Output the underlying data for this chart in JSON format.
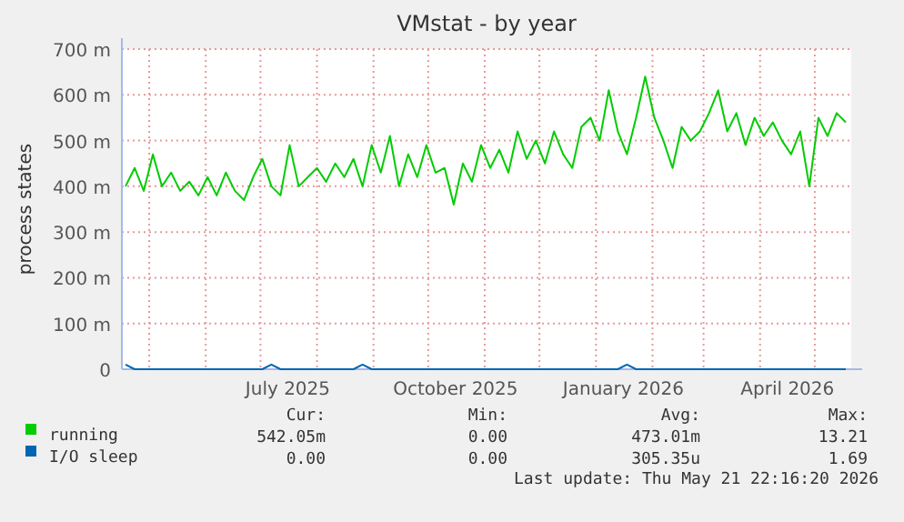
{
  "chart_data": {
    "type": "line",
    "title": "VMstat - by year",
    "ylabel": "process states",
    "x": [
      "2025-04-18",
      "2025-04-23",
      "2025-04-28",
      "2025-05-03",
      "2025-05-08",
      "2025-05-13",
      "2025-05-18",
      "2025-05-23",
      "2025-05-28",
      "2025-06-02",
      "2025-06-07",
      "2025-06-12",
      "2025-06-17",
      "2025-06-22",
      "2025-06-27",
      "2025-07-02",
      "2025-07-07",
      "2025-07-12",
      "2025-07-17",
      "2025-07-22",
      "2025-07-27",
      "2025-08-01",
      "2025-08-06",
      "2025-08-11",
      "2025-08-16",
      "2025-08-21",
      "2025-08-26",
      "2025-08-31",
      "2025-09-05",
      "2025-09-10",
      "2025-09-15",
      "2025-09-20",
      "2025-09-25",
      "2025-09-30",
      "2025-10-05",
      "2025-10-10",
      "2025-10-15",
      "2025-10-20",
      "2025-10-25",
      "2025-10-30",
      "2025-11-04",
      "2025-11-09",
      "2025-11-14",
      "2025-11-19",
      "2025-11-24",
      "2025-11-29",
      "2025-12-04",
      "2025-12-09",
      "2025-12-14",
      "2025-12-19",
      "2025-12-24",
      "2025-12-29",
      "2026-01-03",
      "2026-01-08",
      "2026-01-13",
      "2026-01-18",
      "2026-01-23",
      "2026-01-28",
      "2026-02-02",
      "2026-02-07",
      "2026-02-12",
      "2026-02-17",
      "2026-02-22",
      "2026-02-27",
      "2026-03-04",
      "2026-03-09",
      "2026-03-14",
      "2026-03-19",
      "2026-03-24",
      "2026-03-29",
      "2026-04-03",
      "2026-04-08",
      "2026-04-13",
      "2026-04-18",
      "2026-04-23",
      "2026-04-28",
      "2026-05-03",
      "2026-05-08",
      "2026-05-13",
      "2026-05-18"
    ],
    "series": [
      {
        "name": "running",
        "color": "#00cc00",
        "values": [
          400,
          440,
          390,
          470,
          400,
          430,
          390,
          410,
          380,
          420,
          380,
          430,
          390,
          370,
          420,
          460,
          400,
          380,
          490,
          400,
          420,
          440,
          410,
          450,
          420,
          460,
          400,
          490,
          430,
          510,
          400,
          470,
          420,
          490,
          430,
          440,
          360,
          450,
          410,
          490,
          440,
          480,
          430,
          520,
          460,
          500,
          450,
          520,
          470,
          440,
          530,
          550,
          500,
          610,
          520,
          470,
          550,
          640,
          550,
          500,
          440,
          530,
          500,
          520,
          560,
          610,
          520,
          560,
          490,
          550,
          510,
          540,
          500,
          470,
          520,
          400,
          550,
          510,
          560,
          540
        ]
      },
      {
        "name": "I/O sleep",
        "color": "#0066b3",
        "values": [
          10,
          0,
          0,
          0,
          0,
          0,
          0,
          0,
          0,
          0,
          0,
          0,
          0,
          0,
          0,
          0,
          10,
          0,
          0,
          0,
          0,
          0,
          0,
          0,
          0,
          0,
          10,
          0,
          0,
          0,
          0,
          0,
          0,
          0,
          0,
          0,
          0,
          0,
          0,
          0,
          0,
          0,
          0,
          0,
          0,
          0,
          0,
          0,
          0,
          0,
          0,
          0,
          0,
          0,
          0,
          10,
          0,
          0,
          0,
          0,
          0,
          0,
          0,
          0,
          0,
          0,
          0,
          0,
          0,
          0,
          0,
          0,
          0,
          0,
          0,
          0,
          0,
          0,
          0,
          0
        ]
      }
    ],
    "xlim": [
      "2025-04-16",
      "2026-05-21"
    ],
    "xticks": [
      {
        "value": "2025-05-01",
        "label": null
      },
      {
        "value": "2025-06-01",
        "label": null
      },
      {
        "value": "2025-07-01",
        "label": null
      },
      {
        "value": "2025-07-16",
        "label": "July 2025"
      },
      {
        "value": "2025-08-01",
        "label": null
      },
      {
        "value": "2025-09-01",
        "label": null
      },
      {
        "value": "2025-10-01",
        "label": null
      },
      {
        "value": "2025-10-16",
        "label": "October 2025"
      },
      {
        "value": "2025-11-01",
        "label": null
      },
      {
        "value": "2025-12-01",
        "label": null
      },
      {
        "value": "2026-01-01",
        "label": null
      },
      {
        "value": "2026-01-16",
        "label": "January 2026"
      },
      {
        "value": "2026-02-01",
        "label": null
      },
      {
        "value": "2026-03-01",
        "label": null
      },
      {
        "value": "2026-04-01",
        "label": null
      },
      {
        "value": "2026-04-16",
        "label": "April 2026"
      },
      {
        "value": "2026-05-01",
        "label": null
      }
    ],
    "ylim": [
      0,
      700
    ],
    "yticks": [
      {
        "value": 0,
        "label": "0"
      },
      {
        "value": 100,
        "label": "100 m"
      },
      {
        "value": 200,
        "label": "200 m"
      },
      {
        "value": 300,
        "label": "300 m"
      },
      {
        "value": 400,
        "label": "400 m"
      },
      {
        "value": 500,
        "label": "500 m"
      },
      {
        "value": 600,
        "label": "600 m"
      },
      {
        "value": 700,
        "label": "700 m"
      }
    ],
    "grid": true,
    "legend": "bottom",
    "annotations": [
      "Cur:",
      "Min:",
      "Avg:",
      "Max:",
      "542.05m",
      "0.00",
      "473.01m",
      "13.21",
      "0.00",
      "0.00",
      "305.35u",
      "1.69",
      "Last update: Thu May 21 22:16:20 2026"
    ]
  }
}
